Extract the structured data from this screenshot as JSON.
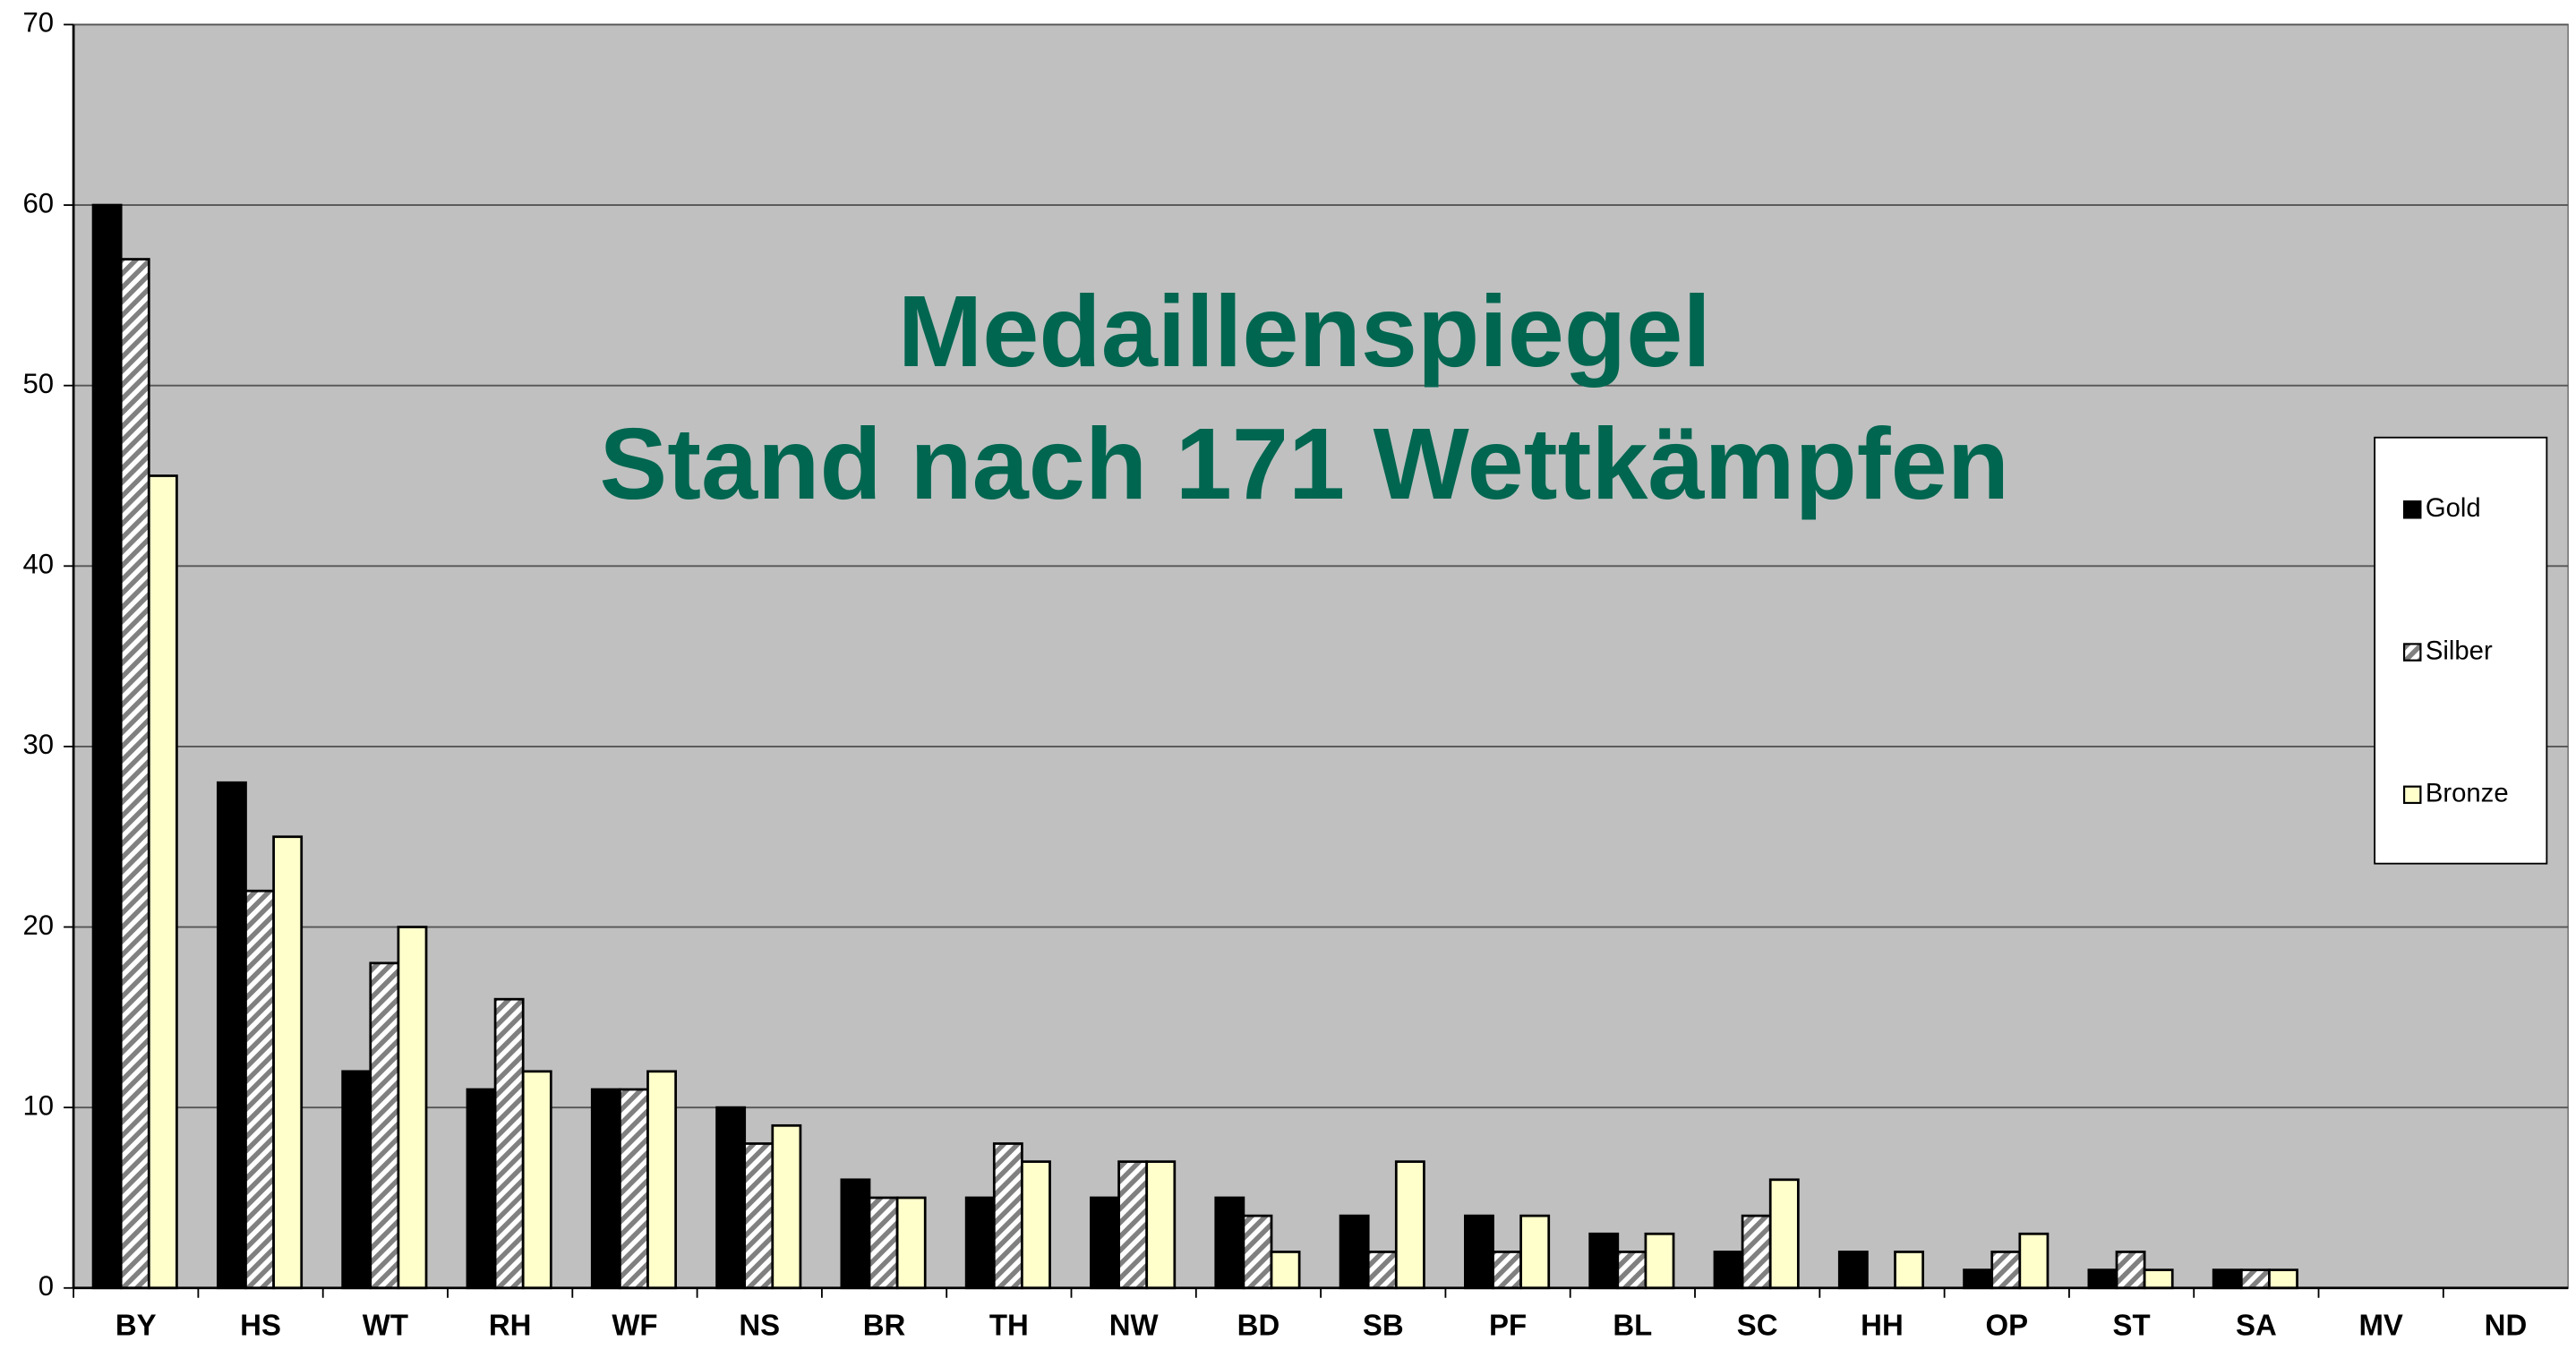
{
  "chart_data": {
    "type": "bar",
    "title": "Medaillenspiegel",
    "subtitle": "Stand nach 171 Wettkämpfen",
    "categories": [
      "BY",
      "HS",
      "WT",
      "RH",
      "WF",
      "NS",
      "BR",
      "TH",
      "NW",
      "BD",
      "SB",
      "PF",
      "BL",
      "SC",
      "HH",
      "OP",
      "ST",
      "SA",
      "MV",
      "ND"
    ],
    "series": [
      {
        "name": "Gold",
        "color": "#000000",
        "values": [
          60,
          28,
          12,
          11,
          11,
          10,
          6,
          5,
          5,
          5,
          4,
          4,
          3,
          2,
          2,
          1,
          1,
          1,
          0,
          0
        ]
      },
      {
        "name": "Silber",
        "color": "#808080",
        "pattern": "hatch",
        "values": [
          57,
          22,
          18,
          16,
          11,
          8,
          5,
          8,
          7,
          4,
          2,
          2,
          2,
          4,
          0,
          2,
          2,
          1,
          0,
          0
        ]
      },
      {
        "name": "Bronze",
        "color": "#ffffcc",
        "values": [
          45,
          25,
          20,
          12,
          12,
          9,
          5,
          7,
          7,
          2,
          7,
          4,
          3,
          6,
          2,
          3,
          1,
          1,
          0,
          0
        ]
      }
    ],
    "ylim": [
      0,
      70
    ],
    "yticks": [
      0,
      10,
      20,
      30,
      40,
      50,
      60,
      70
    ],
    "grid": true,
    "legend": "right"
  }
}
